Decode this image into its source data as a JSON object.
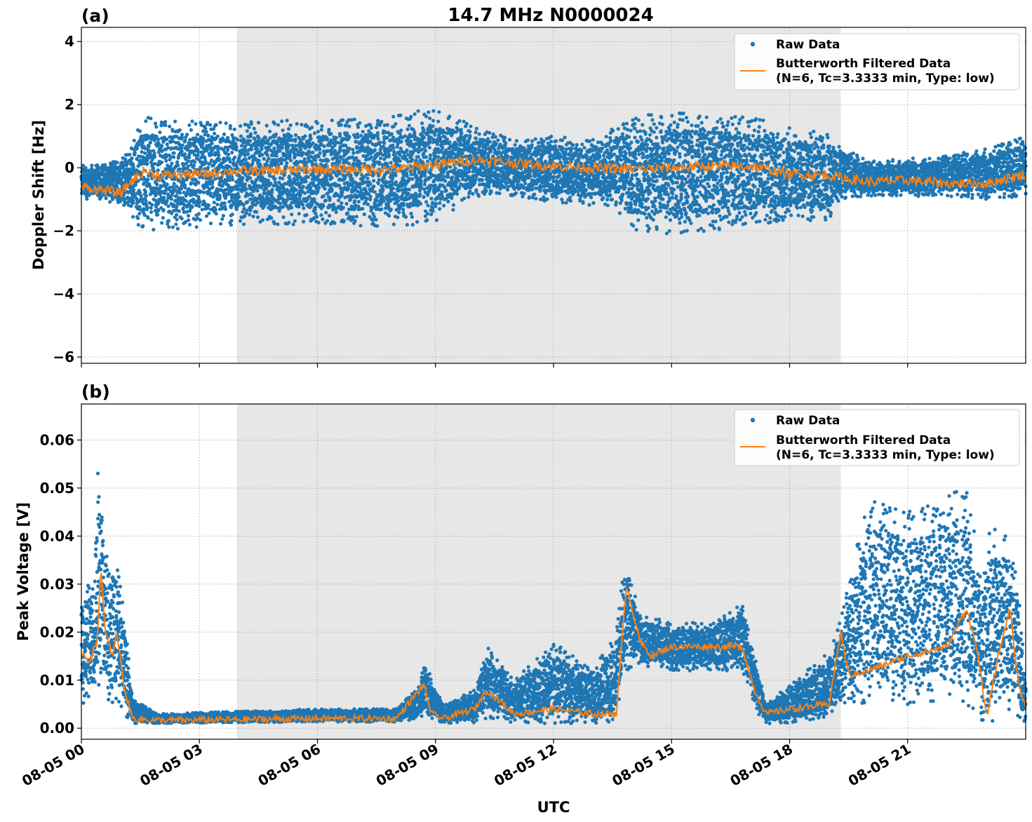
{
  "title": "14.7 MHz N0000024",
  "xlabel": "UTC",
  "x_tick_labels": [
    "08-05 00",
    "08-05 03",
    "08-05 06",
    "08-05 09",
    "08-05 12",
    "08-05 15",
    "08-05 18",
    "08-05 21"
  ],
  "colors": {
    "raw": "#1f77b4",
    "filtered": "#ff7f0e",
    "shade": "#e7e7e7",
    "grid": "#b0b0b0"
  },
  "chart_data": [
    {
      "type": "scatter",
      "panel_label": "(a)",
      "ylabel": "Doppler Shift [Hz]",
      "xlim": [
        0,
        24
      ],
      "x_unit": "hours UTC on 08-05",
      "ylim": [
        -6.2,
        4.45
      ],
      "y_ticks": [
        -6,
        -4,
        -2,
        0,
        2,
        4
      ],
      "y_tick_labels": [
        "−6",
        "−4",
        "−2",
        "0",
        "2",
        "4"
      ],
      "shaded_span_hours": [
        3.95,
        19.3
      ],
      "grid": true,
      "legend_placement": "upper right",
      "legend": [
        "Raw Data",
        "Butterworth Filtered Data",
        "(N=6, Tc=3.3333 min, Type: low)"
      ],
      "series": [
        {
          "name": "Raw Data",
          "style": "points",
          "envelope_hours": [
            0,
            0.5,
            1.2,
            1.5,
            3,
            4,
            6,
            8,
            9,
            10,
            11,
            12,
            13,
            13.6,
            14,
            15,
            16,
            17,
            18,
            19,
            19.3,
            20,
            21,
            22,
            23,
            24
          ],
          "envelope_low": [
            -1.0,
            -1.0,
            -1.3,
            -2.0,
            -1.9,
            -1.8,
            -1.8,
            -1.9,
            -1.7,
            -0.9,
            -0.9,
            -1.1,
            -1.2,
            -1.3,
            -2.0,
            -2.1,
            -2.0,
            -1.8,
            -1.7,
            -1.7,
            -1.0,
            -0.9,
            -0.9,
            -0.9,
            -1.0,
            -0.9
          ],
          "envelope_high": [
            0.1,
            0.1,
            0.5,
            1.6,
            1.5,
            1.5,
            1.5,
            1.7,
            1.9,
            1.3,
            0.9,
            1.0,
            0.9,
            1.3,
            1.7,
            1.8,
            1.7,
            1.6,
            1.3,
            1.1,
            0.7,
            0.2,
            0.3,
            0.4,
            0.6,
            1.0
          ]
        },
        {
          "name": "Butterworth Filtered Data",
          "style": "line",
          "x": [
            0,
            0.5,
            1.0,
            1.3,
            1.6,
            2,
            3,
            4,
            5,
            6,
            7,
            8,
            9,
            10,
            11,
            12,
            13,
            14,
            15,
            16,
            17,
            18,
            19,
            20,
            21,
            22,
            23,
            24
          ],
          "y": [
            -0.6,
            -0.7,
            -0.8,
            -0.4,
            -0.1,
            -0.25,
            -0.2,
            -0.1,
            -0.1,
            -0.05,
            -0.05,
            -0.05,
            0.1,
            0.25,
            0.15,
            0.05,
            0.0,
            -0.05,
            0.0,
            0.05,
            0.05,
            -0.2,
            -0.25,
            -0.45,
            -0.4,
            -0.5,
            -0.5,
            -0.2
          ]
        }
      ]
    },
    {
      "type": "scatter",
      "panel_label": "(b)",
      "ylabel": "Peak Voltage [V]",
      "xlim": [
        0,
        24
      ],
      "x_unit": "hours UTC on 08-05",
      "ylim": [
        -0.0023,
        0.0675
      ],
      "y_ticks": [
        0,
        0.01,
        0.02,
        0.03,
        0.04,
        0.05,
        0.06
      ],
      "y_tick_labels": [
        "0.00",
        "0.01",
        "0.02",
        "0.03",
        "0.04",
        "0.05",
        "0.06"
      ],
      "shaded_span_hours": [
        3.95,
        19.3
      ],
      "grid": true,
      "legend_placement": "upper right",
      "legend": [
        "Raw Data",
        "Butterworth Filtered Data",
        "(N=6, Tc=3.3333 min, Type: low)"
      ],
      "series": [
        {
          "name": "Raw Data",
          "style": "points",
          "envelope_hours": [
            0,
            0.3,
            0.45,
            0.6,
            0.9,
            1.15,
            1.3,
            2,
            4,
            6,
            8,
            8.6,
            8.7,
            8.9,
            9.2,
            10,
            10.3,
            11,
            12,
            13,
            13.6,
            13.8,
            14.2,
            15,
            16,
            16.8,
            17.2,
            17.4,
            18,
            19,
            19.3,
            19.5,
            20,
            21,
            22,
            22.5,
            22.9,
            23.1,
            23.6,
            23.8,
            24
          ],
          "envelope_low": [
            0.005,
            0.006,
            0.008,
            0.006,
            0.005,
            0.002,
            0.001,
            0.001,
            0.0012,
            0.0013,
            0.0013,
            0.002,
            0.003,
            0.002,
            0.001,
            0.001,
            0.002,
            0.001,
            0.001,
            0.001,
            0.001,
            0.012,
            0.013,
            0.012,
            0.012,
            0.012,
            0.003,
            0.001,
            0.001,
            0.002,
            0.004,
            0.005,
            0.005,
            0.004,
            0.006,
            0.005,
            0.001,
            0.001,
            0.004,
            0.001,
            0.001
          ],
          "envelope_high": [
            0.03,
            0.03,
            0.06,
            0.04,
            0.035,
            0.02,
            0.006,
            0.003,
            0.0035,
            0.004,
            0.004,
            0.009,
            0.016,
            0.01,
            0.005,
            0.008,
            0.017,
            0.01,
            0.018,
            0.012,
            0.02,
            0.035,
            0.024,
            0.022,
            0.022,
            0.026,
            0.012,
            0.005,
            0.009,
            0.016,
            0.023,
            0.03,
            0.049,
            0.045,
            0.049,
            0.051,
            0.03,
            0.043,
            0.04,
            0.03,
            0.009
          ]
        },
        {
          "name": "Butterworth Filtered Data",
          "style": "line",
          "x": [
            0,
            0.2,
            0.4,
            0.5,
            0.6,
            0.8,
            0.9,
            1.1,
            1.3,
            2,
            4,
            6,
            8,
            8.7,
            8.9,
            9.2,
            10,
            10.3,
            11,
            12,
            13,
            13.6,
            13.85,
            14.2,
            14.5,
            15,
            16,
            16.8,
            17.1,
            17.4,
            18,
            19,
            19.3,
            19.5,
            20,
            21,
            22,
            22.5,
            22.8,
            23.0,
            23.3,
            23.6,
            23.8,
            24
          ],
          "y": [
            0.016,
            0.014,
            0.018,
            0.034,
            0.02,
            0.015,
            0.02,
            0.008,
            0.002,
            0.0016,
            0.0018,
            0.002,
            0.002,
            0.009,
            0.003,
            0.002,
            0.004,
            0.008,
            0.003,
            0.004,
            0.003,
            0.003,
            0.03,
            0.018,
            0.015,
            0.017,
            0.017,
            0.017,
            0.008,
            0.003,
            0.004,
            0.005,
            0.02,
            0.011,
            0.012,
            0.015,
            0.017,
            0.025,
            0.015,
            0.002,
            0.015,
            0.025,
            0.01,
            0.004
          ]
        }
      ]
    }
  ]
}
